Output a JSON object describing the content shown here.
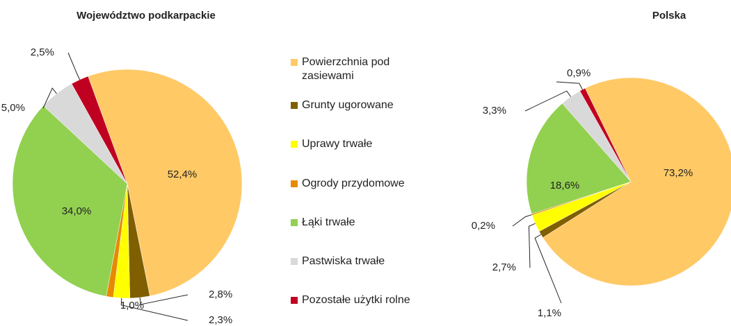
{
  "chart_data": [
    {
      "type": "pie",
      "title": "Województwo podkarpackie",
      "categories": [
        "Powierzchnia pod zasiewami",
        "Grunty ugorowane",
        "Uprawy trwałe",
        "Ogrody przydomowe",
        "Łąki trwałe",
        "Pastwiska trwałe",
        "Pozostałe użytki rolne"
      ],
      "values": [
        52.4,
        2.8,
        2.3,
        1.0,
        34.0,
        5.0,
        2.5
      ],
      "value_labels": [
        "52,4%",
        "2,8%",
        "2,3%",
        "1,0%",
        "34,0%",
        "5,0%",
        "2,5%"
      ],
      "colors": [
        "#ffc966",
        "#7f5f00",
        "#ffff00",
        "#e88a00",
        "#92d050",
        "#d9d9d9",
        "#c00020"
      ],
      "legend": "center"
    },
    {
      "type": "pie",
      "title": "Polska",
      "categories": [
        "Powierzchnia pod zasiewami",
        "Grunty ugorowane",
        "Uprawy trwałe",
        "Ogrody przydomowe",
        "Łąki trwałe",
        "Pastwiska trwałe",
        "Pozostałe użytki rolne"
      ],
      "values": [
        73.2,
        1.1,
        2.7,
        0.2,
        18.6,
        3.3,
        0.9
      ],
      "value_labels": [
        "73,2%",
        "1,1%",
        "2,7%",
        "0,2%",
        "18,6%",
        "3,3%",
        "0,9%"
      ],
      "colors": [
        "#ffc966",
        "#7f5f00",
        "#ffff00",
        "#e88a00",
        "#92d050",
        "#d9d9d9",
        "#c00020"
      ]
    }
  ]
}
